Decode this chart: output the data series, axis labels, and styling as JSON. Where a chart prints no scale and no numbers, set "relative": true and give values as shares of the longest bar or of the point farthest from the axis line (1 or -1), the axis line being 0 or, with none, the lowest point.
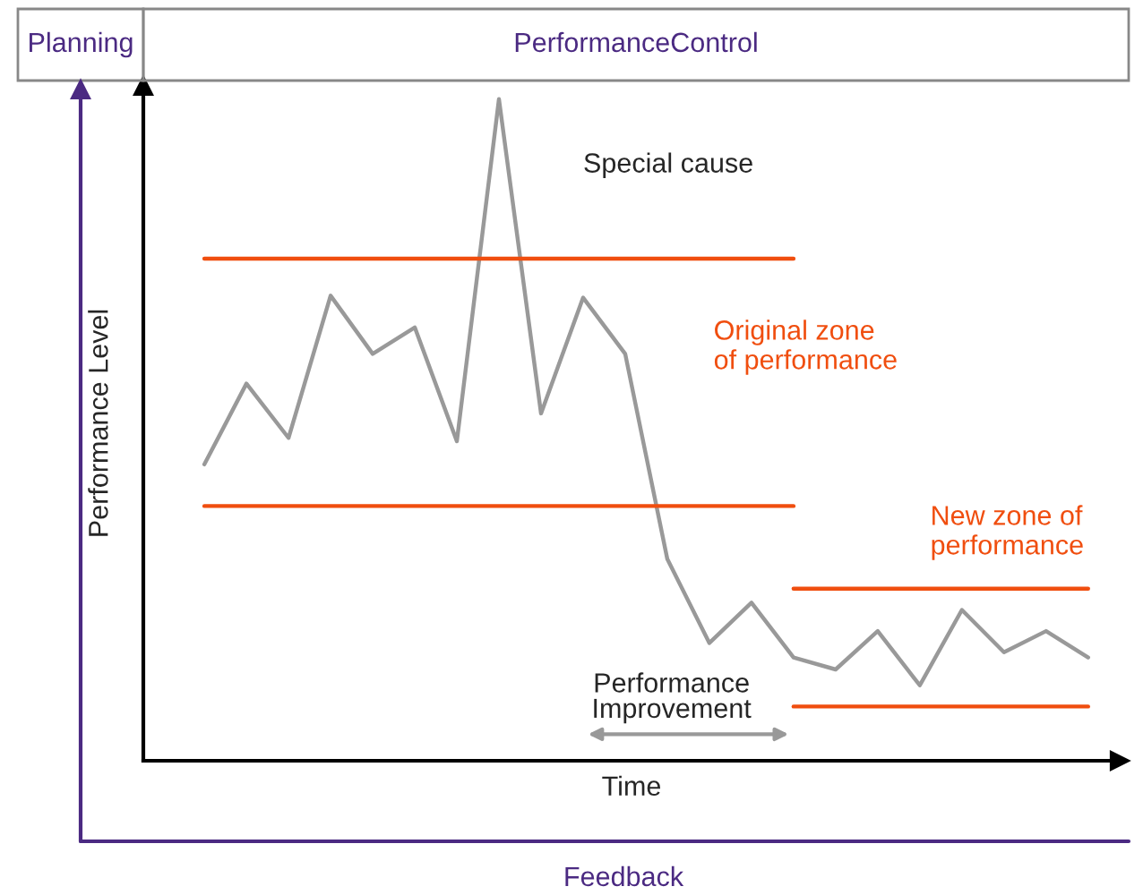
{
  "chart_data": {
    "type": "line",
    "relative": true,
    "xlabel": "Time",
    "ylabel": "Performance Level",
    "categories": [
      null,
      null,
      null,
      null,
      null,
      null,
      null,
      null,
      null,
      null,
      null,
      null,
      null,
      null,
      null,
      null,
      null,
      null,
      null,
      null,
      null,
      null
    ],
    "series": [
      {
        "color": "#999999",
        "values": [
          0.448,
          0.57,
          0.488,
          0.703,
          0.615,
          0.655,
          0.483,
          1,
          0.525,
          0.7,
          0.615,
          0.305,
          0.178,
          0.239,
          0.156,
          0.138,
          0.196,
          0.114,
          0.228,
          0.164,
          0.196,
          0.156
        ]
      },
      {
        "type": "line",
        "color": "#f04e0f",
        "values": [
          0.759,
          0.759,
          0.759,
          0.759,
          0.759,
          0.759,
          0.759,
          0.759,
          0.759,
          0.759,
          0.759,
          0.759,
          0.759,
          0.759,
          0.759,
          null,
          null,
          null,
          null,
          null,
          null,
          null
        ]
      },
      {
        "type": "line",
        "color": "#f04e0f",
        "values": [
          0.385,
          0.385,
          0.385,
          0.385,
          0.385,
          0.385,
          0.385,
          0.385,
          0.385,
          0.385,
          0.385,
          0.385,
          0.385,
          0.385,
          0.385,
          null,
          null,
          null,
          null,
          null,
          null,
          null
        ]
      },
      {
        "type": "line",
        "color": "#f04e0f",
        "values": [
          null,
          null,
          null,
          null,
          null,
          null,
          null,
          null,
          null,
          null,
          null,
          null,
          null,
          null,
          0.26,
          0.26,
          0.26,
          0.26,
          0.26,
          0.26,
          0.26,
          0.26
        ]
      },
      {
        "type": "line",
        "color": "#f04e0f",
        "values": [
          null,
          null,
          null,
          null,
          null,
          null,
          null,
          null,
          null,
          null,
          null,
          null,
          null,
          null,
          0.082,
          0.082,
          0.082,
          0.082,
          0.082,
          0.082,
          0.082,
          0.082
        ]
      }
    ],
    "annotations": [
      "Planning",
      "PerformanceControl",
      "Special cause",
      "Original zone\nof performance",
      "New zone of\nperformance",
      "Performance\nImprovement",
      "Feedback"
    ],
    "marker": "none",
    "line_style": "solid"
  }
}
